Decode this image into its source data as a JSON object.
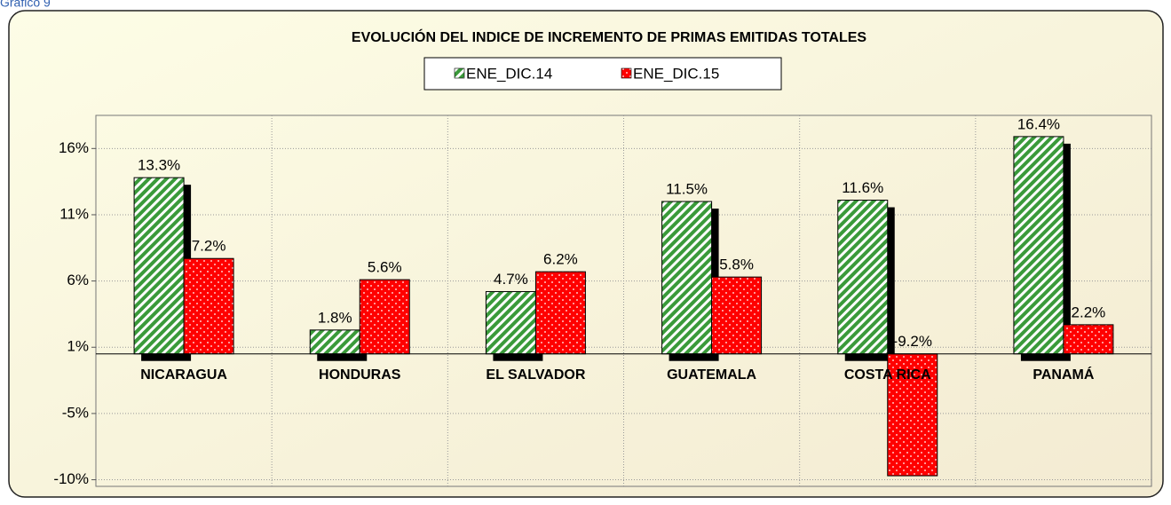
{
  "header": "Gráfico 9",
  "chart_data": {
    "type": "bar",
    "title": "EVOLUCIÓN DEL INDICE DE INCREMENTO DE PRIMAS EMITIDAS  TOTALES",
    "categories": [
      "NICARAGUA",
      "HONDURAS",
      "EL SALVADOR",
      "GUATEMALA",
      "COSTA RICA",
      "PANAMÁ"
    ],
    "series": [
      {
        "name": "ENE_DIC.14",
        "color": "#3a9a3a",
        "values": [
          13.3,
          1.8,
          4.7,
          11.5,
          11.6,
          16.4
        ],
        "value_labels": [
          "13.3%",
          "1.8%",
          "4.7%",
          "11.5%",
          "11.6%",
          "16.4%"
        ]
      },
      {
        "name": "ENE_DIC.15",
        "color": "#ff0000",
        "values": [
          7.2,
          5.6,
          6.2,
          5.8,
          -9.2,
          2.2
        ],
        "value_labels": [
          "7.2%",
          "5.6%",
          "6.2%",
          "5.8%",
          "-9.2%",
          "2.2%"
        ]
      }
    ],
    "ylim": [
      -10,
      18
    ],
    "yticks": [
      {
        "value": -9.5,
        "label": "-10%"
      },
      {
        "value": -4.5,
        "label": "-5%"
      },
      {
        "value": 0.5,
        "label": "1%"
      },
      {
        "value": 5.5,
        "label": "6%"
      },
      {
        "value": 10.5,
        "label": "11%"
      },
      {
        "value": 15.5,
        "label": "16%"
      }
    ],
    "grid": true,
    "legend": "top"
  }
}
